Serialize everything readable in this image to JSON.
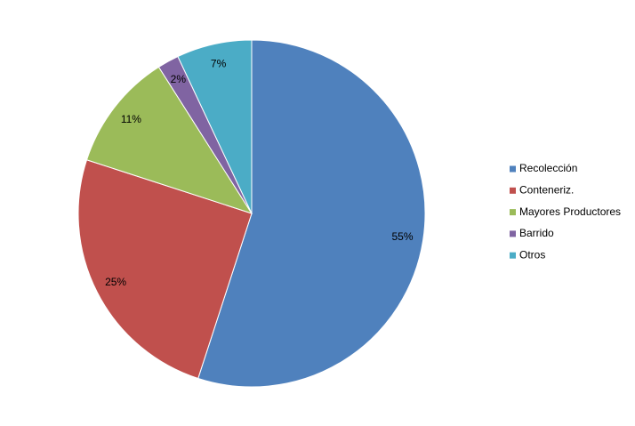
{
  "chart_data": {
    "type": "pie",
    "categories": [
      "Recolección",
      "Conteneriz.",
      "Mayores Productores",
      "Barrido",
      "Otros"
    ],
    "values": [
      55,
      25,
      11,
      2,
      7
    ],
    "value_labels": [
      "55%",
      "25%",
      "11%",
      "2%",
      "7%"
    ],
    "colors": [
      "#4f81bd",
      "#c0504d",
      "#9bbb59",
      "#8064a2",
      "#4bacc6"
    ],
    "legend": "right"
  }
}
